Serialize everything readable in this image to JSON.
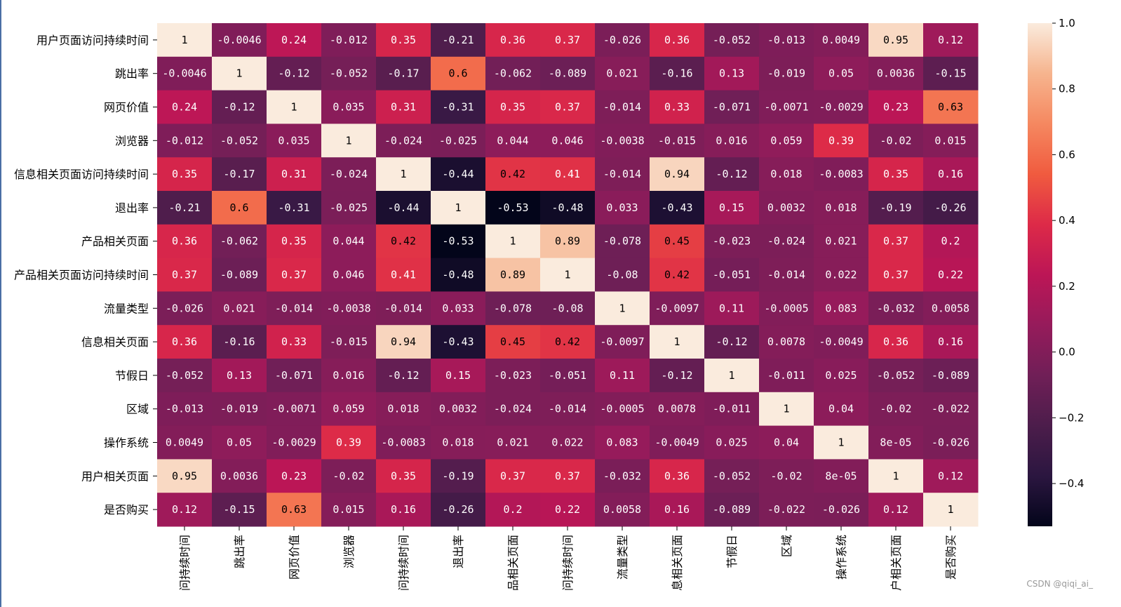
{
  "chart_data": {
    "type": "heatmap",
    "rows": [
      "用户页面访问持续时间",
      "跳出率",
      "网页价值",
      "浏览器",
      "信息相关页面访问持续时间",
      "退出率",
      "产品相关页面",
      "产品相关页面访问持续时间",
      "流量类型",
      "信息相关页面",
      "节假日",
      "区域",
      "操作系统",
      "用户相关页面",
      "是否购买"
    ],
    "columns": [
      "用户页面访问持续时间",
      "跳出率",
      "网页价值",
      "浏览器",
      "信息相关页面访问持续时间",
      "退出率",
      "产品相关页面",
      "产品相关页面访问持续时间",
      "流量类型",
      "信息相关页面",
      "节假日",
      "区域",
      "操作系统",
      "用户相关页面",
      "是否购买"
    ],
    "column_tick_text": [
      "问持续时间",
      "跳出率",
      "网页价值",
      "浏览器",
      "问持续时间",
      "退出率",
      "品相关页面",
      "问持续时间",
      "流量类型",
      "息相关页面",
      "节假日",
      "区域",
      "操作系统",
      "户相关页面",
      "是否购买"
    ],
    "values": [
      [
        1,
        -0.0046,
        0.24,
        -0.012,
        0.35,
        -0.21,
        0.36,
        0.37,
        -0.026,
        0.36,
        -0.052,
        -0.013,
        0.0049,
        0.95,
        0.12
      ],
      [
        -0.0046,
        1,
        -0.12,
        -0.052,
        -0.17,
        0.6,
        -0.062,
        -0.089,
        0.021,
        -0.16,
        0.13,
        -0.019,
        0.05,
        0.0036,
        -0.15
      ],
      [
        0.24,
        -0.12,
        1,
        0.035,
        0.31,
        -0.31,
        0.35,
        0.37,
        -0.014,
        0.33,
        -0.071,
        -0.0071,
        -0.0029,
        0.23,
        0.63
      ],
      [
        -0.012,
        -0.052,
        0.035,
        1,
        -0.024,
        -0.025,
        0.044,
        0.046,
        -0.0038,
        -0.015,
        0.016,
        0.059,
        0.39,
        -0.02,
        0.015
      ],
      [
        0.35,
        -0.17,
        0.31,
        -0.024,
        1,
        -0.44,
        0.42,
        0.41,
        -0.014,
        0.94,
        -0.12,
        0.018,
        -0.0083,
        0.35,
        0.16
      ],
      [
        -0.21,
        0.6,
        -0.31,
        -0.025,
        -0.44,
        1,
        -0.53,
        -0.48,
        0.033,
        -0.43,
        0.15,
        0.0032,
        0.018,
        -0.19,
        -0.26
      ],
      [
        0.36,
        -0.062,
        0.35,
        0.044,
        0.42,
        -0.53,
        1,
        0.89,
        -0.078,
        0.45,
        -0.023,
        -0.024,
        0.021,
        0.37,
        0.2
      ],
      [
        0.37,
        -0.089,
        0.37,
        0.046,
        0.41,
        -0.48,
        0.89,
        1,
        -0.08,
        0.42,
        -0.051,
        -0.014,
        0.022,
        0.37,
        0.22
      ],
      [
        -0.026,
        0.021,
        -0.014,
        -0.0038,
        -0.014,
        0.033,
        -0.078,
        -0.08,
        1,
        -0.0097,
        0.11,
        -0.0005,
        0.083,
        -0.032,
        0.0058
      ],
      [
        0.36,
        -0.16,
        0.33,
        -0.015,
        0.94,
        -0.43,
        0.45,
        0.42,
        -0.0097,
        1,
        -0.12,
        0.0078,
        -0.0049,
        0.36,
        0.16
      ],
      [
        -0.052,
        0.13,
        -0.071,
        0.016,
        -0.12,
        0.15,
        -0.023,
        -0.051,
        0.11,
        -0.12,
        1,
        -0.011,
        0.025,
        -0.052,
        -0.089
      ],
      [
        -0.013,
        -0.019,
        -0.0071,
        0.059,
        0.018,
        0.0032,
        -0.024,
        -0.014,
        -0.0005,
        0.0078,
        -0.011,
        1,
        0.04,
        -0.02,
        -0.022
      ],
      [
        0.0049,
        0.05,
        -0.0029,
        0.39,
        -0.0083,
        0.018,
        0.021,
        0.022,
        0.083,
        -0.0049,
        0.025,
        0.04,
        1,
        8e-05,
        -0.026
      ],
      [
        0.95,
        0.0036,
        0.23,
        -0.02,
        0.35,
        -0.19,
        0.37,
        0.37,
        -0.032,
        0.36,
        -0.052,
        -0.02,
        8e-05,
        1,
        0.12
      ],
      [
        0.12,
        -0.15,
        0.63,
        0.015,
        0.16,
        -0.26,
        0.2,
        0.22,
        0.0058,
        0.16,
        -0.089,
        -0.022,
        -0.026,
        0.12,
        1
      ]
    ],
    "cell_labels": [
      [
        "1",
        "-0.0046",
        "0.24",
        "-0.012",
        "0.35",
        "-0.21",
        "0.36",
        "0.37",
        "-0.026",
        "0.36",
        "-0.052",
        "-0.013",
        "0.0049",
        "0.95",
        "0.12"
      ],
      [
        "-0.0046",
        "1",
        "-0.12",
        "-0.052",
        "-0.17",
        "0.6",
        "-0.062",
        "-0.089",
        "0.021",
        "-0.16",
        "0.13",
        "-0.019",
        "0.05",
        "0.0036",
        "-0.15"
      ],
      [
        "0.24",
        "-0.12",
        "1",
        "0.035",
        "0.31",
        "-0.31",
        "0.35",
        "0.37",
        "-0.014",
        "0.33",
        "-0.071",
        "-0.0071",
        "-0.0029",
        "0.23",
        "0.63"
      ],
      [
        "-0.012",
        "-0.052",
        "0.035",
        "1",
        "-0.024",
        "-0.025",
        "0.044",
        "0.046",
        "-0.0038",
        "-0.015",
        "0.016",
        "0.059",
        "0.39",
        "-0.02",
        "0.015"
      ],
      [
        "0.35",
        "-0.17",
        "0.31",
        "-0.024",
        "1",
        "-0.44",
        "0.42",
        "0.41",
        "-0.014",
        "0.94",
        "-0.12",
        "0.018",
        "-0.0083",
        "0.35",
        "0.16"
      ],
      [
        "-0.21",
        "0.6",
        "-0.31",
        "-0.025",
        "-0.44",
        "1",
        "-0.53",
        "-0.48",
        "0.033",
        "-0.43",
        "0.15",
        "0.0032",
        "0.018",
        "-0.19",
        "-0.26"
      ],
      [
        "0.36",
        "-0.062",
        "0.35",
        "0.044",
        "0.42",
        "-0.53",
        "1",
        "0.89",
        "-0.078",
        "0.45",
        "-0.023",
        "-0.024",
        "0.021",
        "0.37",
        "0.2"
      ],
      [
        "0.37",
        "-0.089",
        "0.37",
        "0.046",
        "0.41",
        "-0.48",
        "0.89",
        "1",
        "-0.08",
        "0.42",
        "-0.051",
        "-0.014",
        "0.022",
        "0.37",
        "0.22"
      ],
      [
        "-0.026",
        "0.021",
        "-0.014",
        "-0.0038",
        "-0.014",
        "0.033",
        "-0.078",
        "-0.08",
        "1",
        "-0.0097",
        "0.11",
        "-0.0005",
        "0.083",
        "-0.032",
        "0.0058"
      ],
      [
        "0.36",
        "-0.16",
        "0.33",
        "-0.015",
        "0.94",
        "-0.43",
        "0.45",
        "0.42",
        "-0.0097",
        "1",
        "-0.12",
        "0.0078",
        "-0.0049",
        "0.36",
        "0.16"
      ],
      [
        "-0.052",
        "0.13",
        "-0.071",
        "0.016",
        "-0.12",
        "0.15",
        "-0.023",
        "-0.051",
        "0.11",
        "-0.12",
        "1",
        "-0.011",
        "0.025",
        "-0.052",
        "-0.089"
      ],
      [
        "-0.013",
        "-0.019",
        "-0.0071",
        "0.059",
        "0.018",
        "0.0032",
        "-0.024",
        "-0.014",
        "-0.0005",
        "0.0078",
        "-0.011",
        "1",
        "0.04",
        "-0.02",
        "-0.022"
      ],
      [
        "0.0049",
        "0.05",
        "-0.0029",
        "0.39",
        "-0.0083",
        "0.018",
        "0.021",
        "0.022",
        "0.083",
        "-0.0049",
        "0.025",
        "0.04",
        "1",
        "8e-05",
        "-0.026"
      ],
      [
        "0.95",
        "0.0036",
        "0.23",
        "-0.02",
        "0.35",
        "-0.19",
        "0.37",
        "0.37",
        "-0.032",
        "0.36",
        "-0.052",
        "-0.02",
        "8e-05",
        "1",
        "0.12"
      ],
      [
        "0.12",
        "-0.15",
        "0.63",
        "0.015",
        "0.16",
        "-0.26",
        "0.2",
        "0.22",
        "0.0058",
        "0.16",
        "-0.089",
        "-0.022",
        "-0.026",
        "0.12",
        "1"
      ]
    ],
    "colormap": "rocket",
    "colormap_stops": [
      "#03051a",
      "#2b1640",
      "#4c1d4b",
      "#701f57",
      "#961b5b",
      "#bc1656",
      "#dd2a48",
      "#f05b3f",
      "#f58860",
      "#f6b48e",
      "#faebdd"
    ],
    "vmin": -0.53,
    "vmax": 1.0,
    "colorbar": {
      "ticks": [
        1.0,
        0.8,
        0.6,
        0.4,
        0.2,
        0.0,
        -0.2,
        -0.4
      ],
      "tick_labels": [
        "1.0",
        "0.8",
        "0.6",
        "0.4",
        "0.2",
        "0.0",
        "−0.2",
        "−0.4"
      ]
    }
  },
  "watermark": "CSDN @qiqi_ai_"
}
